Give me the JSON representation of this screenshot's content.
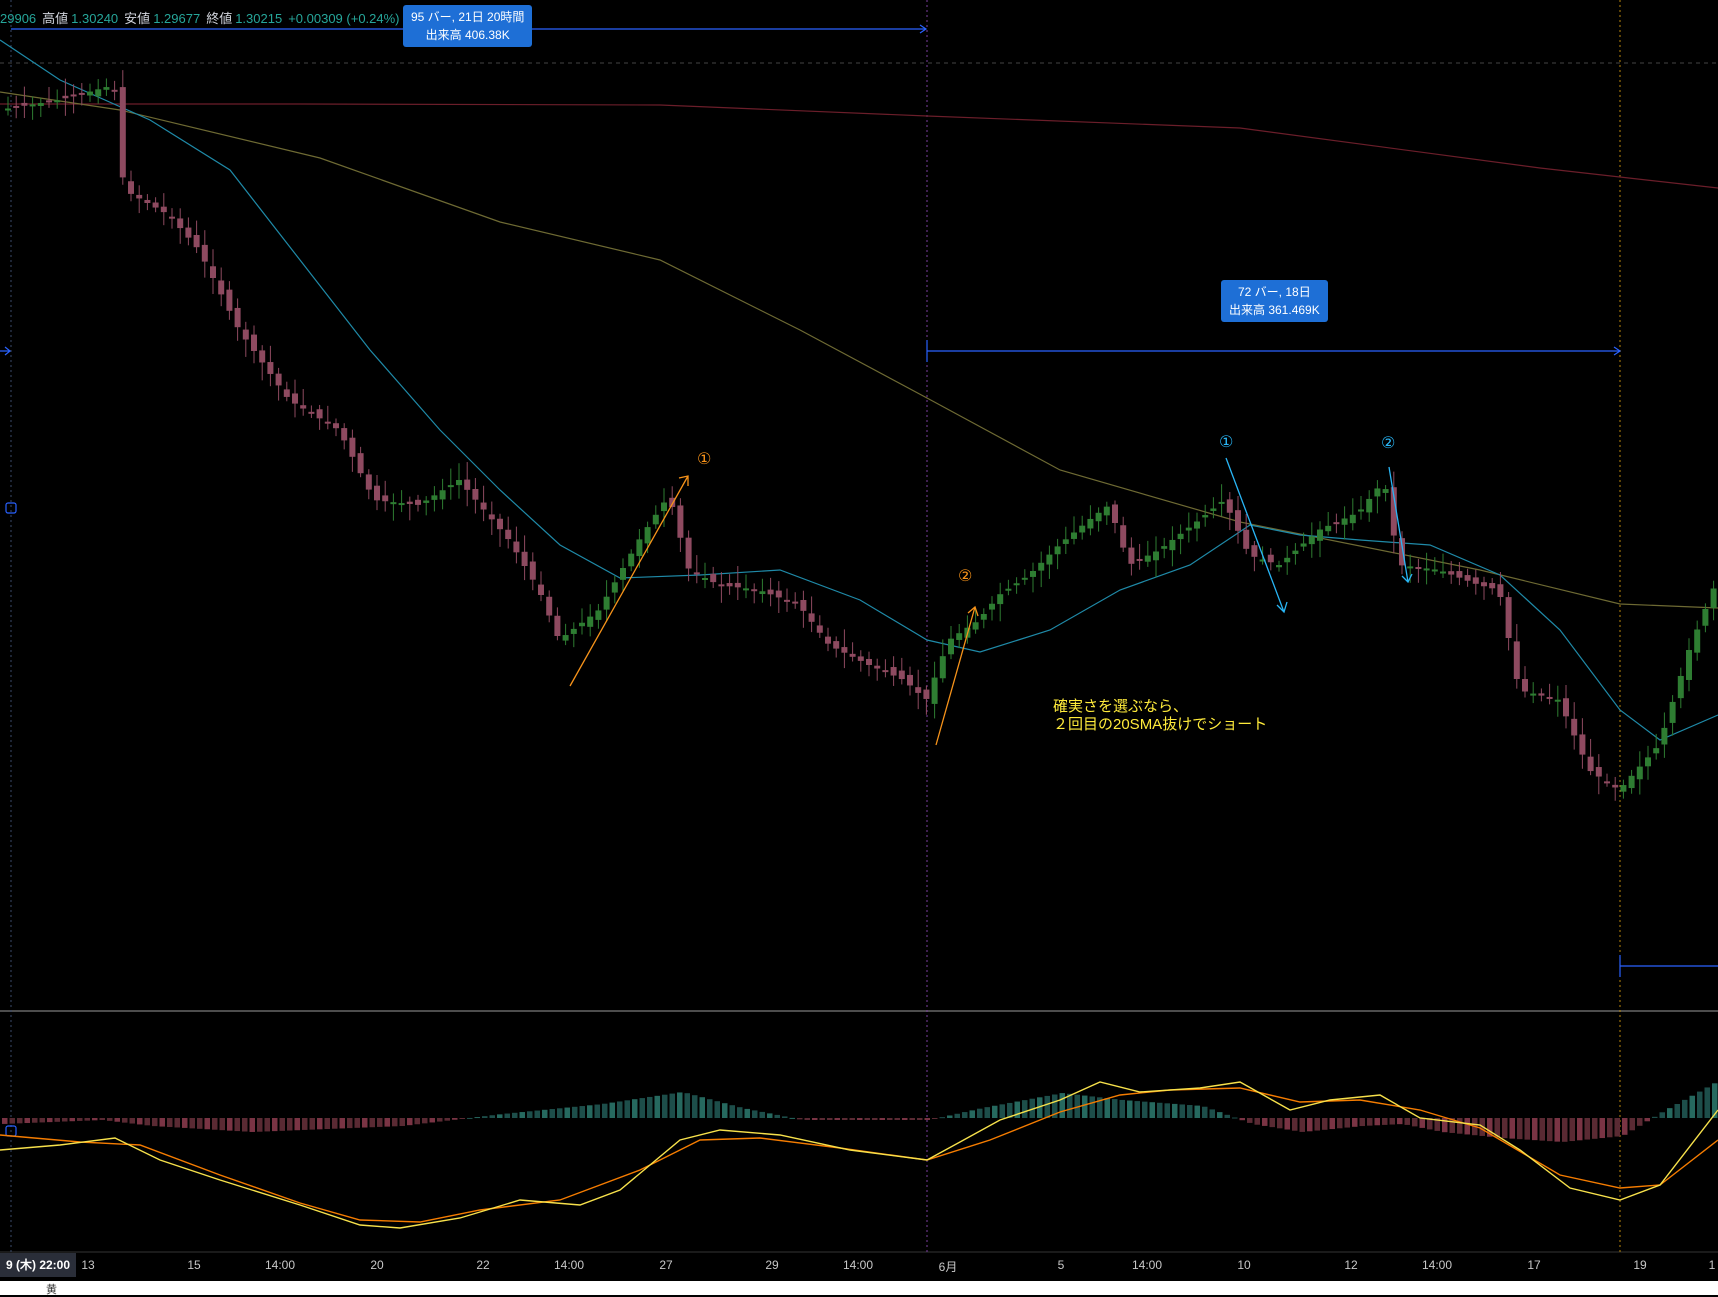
{
  "legend": {
    "open_partial": "29906",
    "high_label": "高値",
    "high": "1.30240",
    "low_label": "安値",
    "low": "1.29677",
    "close_label": "終値",
    "close": "1.30215",
    "change": "+0.00309 (+0.24%)"
  },
  "tooltips": {
    "range1_line1": "95 バー, 21日 20時間",
    "range1_line2": "出来高 406.38K",
    "range2_line1": "72 バー, 18日",
    "range2_line2": "出来高 361.469K"
  },
  "annotations": {
    "note": "確実さを選ぶなら、\n２回目の20SMA抜けでショート",
    "orange_1": "①",
    "orange_2": "②",
    "blue_1": "①",
    "blue_2": "②"
  },
  "time_axis": {
    "current_label": "9 (木)  22:00",
    "labels": [
      "13",
      "15",
      "14:00",
      "20",
      "22",
      "14:00",
      "27",
      "29",
      "14:00",
      "6月",
      "5",
      "14:00",
      "10",
      "12",
      "14:00",
      "17",
      "19",
      "1"
    ]
  },
  "bottom_strip": {
    "glyph": "黄"
  },
  "colors": {
    "bull": "#2e7d32",
    "bear": "#8e4a60",
    "sma20": "#1f8aa8",
    "sma_mid": "#6e6a33",
    "sma_long": "#6b1e2a",
    "range_line": "#2962ff",
    "macd": "#f7e14b",
    "signal": "#f57c00",
    "annotation_orange": "#f7931a",
    "annotation_blue": "#29b6f6",
    "note": "#ffeb3b"
  },
  "chart_data": {
    "type": "candlestick",
    "symbol_scale": "price",
    "price_candles_approx_close_path": [
      1.301,
      1.3,
      1.299,
      1.2965,
      1.295,
      1.2935,
      1.292,
      1.2905,
      1.289,
      1.2882,
      1.2892,
      1.2905,
      1.2895,
      1.288,
      1.2872,
      1.2865,
      1.286,
      1.2858,
      1.287,
      1.2888,
      1.2902,
      1.2912,
      1.29,
      1.292,
      1.2905,
      1.289,
      1.2875,
      1.2885,
      1.29
    ],
    "series": [
      {
        "name": "SMA20",
        "shown": true
      },
      {
        "name": "SMA mid",
        "shown": true
      },
      {
        "name": "SMA long",
        "shown": true
      }
    ],
    "indicator_panel": {
      "type": "MACD",
      "histogram": true,
      "lines": [
        "macd",
        "signal"
      ]
    }
  }
}
